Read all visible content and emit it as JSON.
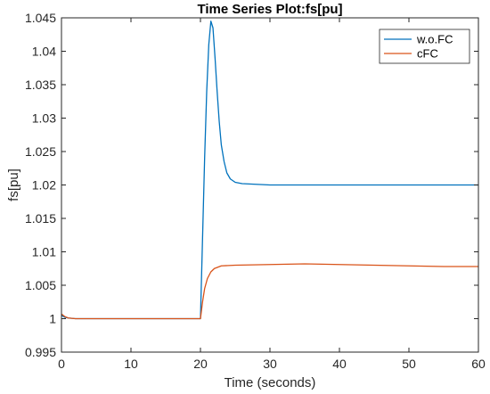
{
  "chart_data": {
    "type": "line",
    "title": "Time Series Plot:fs[pu]",
    "xlabel": "Time (seconds)",
    "ylabel": "fs[pu]",
    "xlim": [
      0,
      60
    ],
    "ylim": [
      0.995,
      1.045
    ],
    "xticks": [
      0,
      10,
      20,
      30,
      40,
      50,
      60
    ],
    "xtick_labels": [
      "0",
      "10",
      "20",
      "30",
      "40",
      "50",
      "60"
    ],
    "yticks": [
      0.995,
      1,
      1.005,
      1.01,
      1.015,
      1.02,
      1.025,
      1.03,
      1.035,
      1.04,
      1.045
    ],
    "ytick_labels": [
      "0.995",
      "1",
      "1.005",
      "1.01",
      "1.015",
      "1.02",
      "1.025",
      "1.03",
      "1.035",
      "1.04",
      "1.045"
    ],
    "grid": false,
    "legend_position": "top-right",
    "series": [
      {
        "name": "w.o.FC",
        "color": "#0072BD",
        "points": [
          [
            0,
            1.0005
          ],
          [
            0.5,
            1.0002
          ],
          [
            1,
            1.0001
          ],
          [
            2,
            1.0
          ],
          [
            5,
            1.0
          ],
          [
            10,
            1.0
          ],
          [
            15,
            1.0
          ],
          [
            19.9,
            1.0
          ],
          [
            20.0,
            1.0
          ],
          [
            20.3,
            1.012
          ],
          [
            20.6,
            1.024
          ],
          [
            20.9,
            1.034
          ],
          [
            21.2,
            1.041
          ],
          [
            21.5,
            1.0445
          ],
          [
            21.8,
            1.0435
          ],
          [
            22.1,
            1.039
          ],
          [
            22.4,
            1.034
          ],
          [
            22.7,
            1.0295
          ],
          [
            23.0,
            1.026
          ],
          [
            23.4,
            1.0235
          ],
          [
            23.8,
            1.0218
          ],
          [
            24.3,
            1.0209
          ],
          [
            25.0,
            1.0204
          ],
          [
            26.0,
            1.0202
          ],
          [
            28.0,
            1.0201
          ],
          [
            30.0,
            1.02
          ],
          [
            40.0,
            1.02
          ],
          [
            50.0,
            1.02
          ],
          [
            60.0,
            1.02
          ]
        ]
      },
      {
        "name": "cFC",
        "color": "#D95319",
        "points": [
          [
            0,
            1.0007
          ],
          [
            0.5,
            1.0003
          ],
          [
            1,
            1.0001
          ],
          [
            2,
            1.0
          ],
          [
            5,
            1.0
          ],
          [
            10,
            1.0
          ],
          [
            15,
            1.0
          ],
          [
            19.9,
            1.0
          ],
          [
            20.0,
            1.0
          ],
          [
            20.3,
            1.0025
          ],
          [
            20.6,
            1.0045
          ],
          [
            21.0,
            1.006
          ],
          [
            21.5,
            1.007
          ],
          [
            22.0,
            1.0075
          ],
          [
            23.0,
            1.0079
          ],
          [
            25.0,
            1.008
          ],
          [
            30.0,
            1.0081
          ],
          [
            35.0,
            1.0082
          ],
          [
            40.0,
            1.0081
          ],
          [
            45.0,
            1.008
          ],
          [
            50.0,
            1.0079
          ],
          [
            55.0,
            1.0078
          ],
          [
            60.0,
            1.0078
          ]
        ]
      }
    ]
  }
}
